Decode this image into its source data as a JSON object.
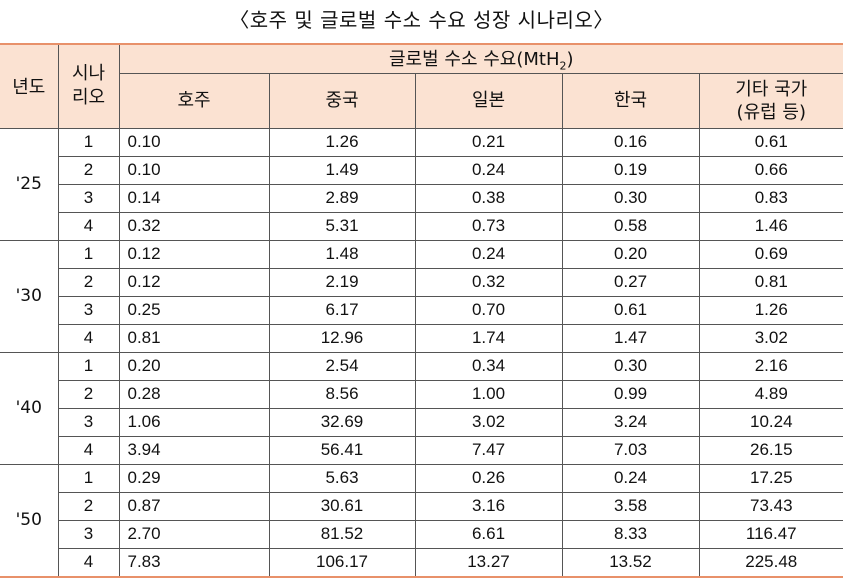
{
  "title": "〈호주 및 글로벌 수소 수요 성장 시나리오〉",
  "header": {
    "year": "년도",
    "scenario": "시나\n리오",
    "group_prefix": "글로벌 수소 수요(MtH",
    "group_sub": "2",
    "group_suffix": ")",
    "columns": [
      "호주",
      "중국",
      "일본",
      "한국",
      "기타 국가\n(유럽 등)"
    ]
  },
  "rows": [
    {
      "year": "'25",
      "entries": [
        {
          "scenario": "1",
          "values": [
            "0.10",
            "1.26",
            "0.21",
            "0.16",
            "0.61"
          ]
        },
        {
          "scenario": "2",
          "values": [
            "0.10",
            "1.49",
            "0.24",
            "0.19",
            "0.66"
          ]
        },
        {
          "scenario": "3",
          "values": [
            "0.14",
            "2.89",
            "0.38",
            "0.30",
            "0.83"
          ]
        },
        {
          "scenario": "4",
          "values": [
            "0.32",
            "5.31",
            "0.73",
            "0.58",
            "1.46"
          ]
        }
      ]
    },
    {
      "year": "'30",
      "entries": [
        {
          "scenario": "1",
          "values": [
            "0.12",
            "1.48",
            "0.24",
            "0.20",
            "0.69"
          ]
        },
        {
          "scenario": "2",
          "values": [
            "0.12",
            "2.19",
            "0.32",
            "0.27",
            "0.81"
          ]
        },
        {
          "scenario": "3",
          "values": [
            "0.25",
            "6.17",
            "0.70",
            "0.61",
            "1.26"
          ]
        },
        {
          "scenario": "4",
          "values": [
            "0.81",
            "12.96",
            "1.74",
            "1.47",
            "3.02"
          ]
        }
      ]
    },
    {
      "year": "'40",
      "entries": [
        {
          "scenario": "1",
          "values": [
            "0.20",
            "2.54",
            "0.34",
            "0.30",
            "2.16"
          ]
        },
        {
          "scenario": "2",
          "values": [
            "0.28",
            "8.56",
            "1.00",
            "0.99",
            "4.89"
          ]
        },
        {
          "scenario": "3",
          "values": [
            "1.06",
            "32.69",
            "3.02",
            "3.24",
            "10.24"
          ]
        },
        {
          "scenario": "4",
          "values": [
            "3.94",
            "56.41",
            "7.47",
            "7.03",
            "26.15"
          ]
        }
      ]
    },
    {
      "year": "'50",
      "entries": [
        {
          "scenario": "1",
          "values": [
            "0.29",
            "5.63",
            "0.26",
            "0.24",
            "17.25"
          ]
        },
        {
          "scenario": "2",
          "values": [
            "0.87",
            "30.61",
            "3.16",
            "3.58",
            "73.43"
          ]
        },
        {
          "scenario": "3",
          "values": [
            "2.70",
            "81.52",
            "6.61",
            "8.33",
            "116.47"
          ]
        },
        {
          "scenario": "4",
          "values": [
            "7.83",
            "106.17",
            "13.27",
            "13.52",
            "225.48"
          ]
        }
      ]
    }
  ]
}
